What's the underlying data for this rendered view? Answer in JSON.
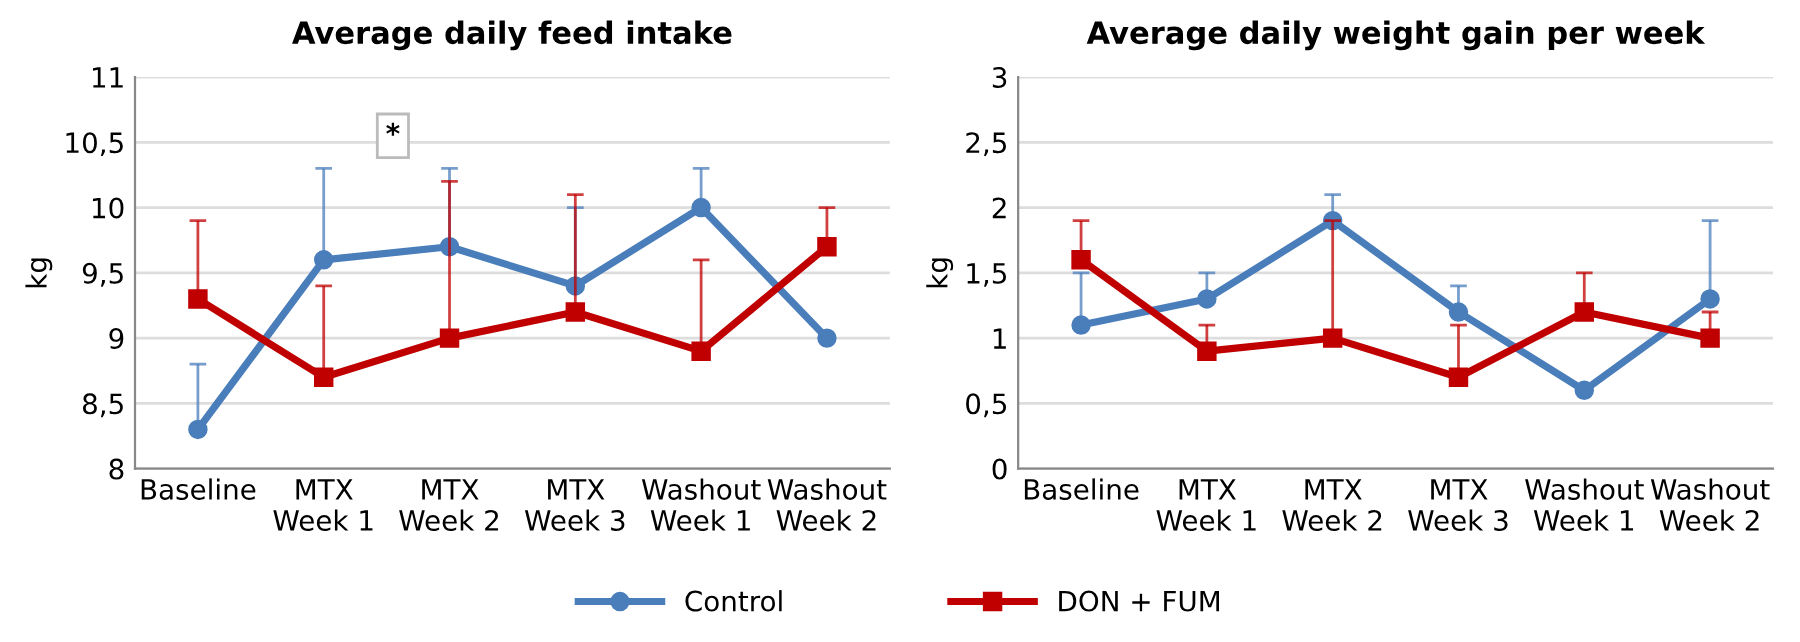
{
  "chart_data": [
    {
      "type": "line",
      "title": "Average daily feed intake",
      "ylabel": "kg",
      "categories": [
        "Baseline",
        "MTX\nWeek 1",
        "MTX\nWeek 2",
        "MTX\nWeek 3",
        "Washout\nWeek 1",
        "Washout\nWeek 2"
      ],
      "series": [
        {
          "name": "Control",
          "color": "#4a7ebb",
          "marker": "circle",
          "values": [
            8.3,
            9.6,
            9.7,
            9.4,
            10.0,
            9.0
          ],
          "errors": [
            [
              8.3,
              8.8
            ],
            [
              9.6,
              10.3
            ],
            [
              9.7,
              10.3
            ],
            [
              9.4,
              10.0
            ],
            [
              10.0,
              10.3
            ],
            null
          ]
        },
        {
          "name": "DON + FUM",
          "color": "#c00000",
          "marker": "square",
          "values": [
            9.3,
            8.7,
            9.0,
            9.2,
            8.9,
            9.7
          ],
          "errors": [
            [
              9.3,
              9.9
            ],
            [
              8.7,
              9.4
            ],
            [
              9.0,
              10.2
            ],
            [
              9.2,
              10.1
            ],
            [
              8.9,
              9.6
            ],
            [
              9.7,
              10.0
            ]
          ]
        }
      ],
      "ylim": [
        8,
        11
      ],
      "yticks": [
        8,
        {
          "value": 8.5,
          "label": "8,5"
        },
        9,
        {
          "value": 9.5,
          "label": "9,5"
        },
        10,
        {
          "value": 10.5,
          "label": "10,5"
        },
        11
      ],
      "annotations": [
        "*"
      ],
      "grid": "y",
      "legend": "bottom"
    },
    {
      "type": "line",
      "title": "Average daily weight gain per week",
      "ylabel": "kg",
      "categories": [
        "Baseline",
        "MTX\nWeek 1",
        "MTX\nWeek 2",
        "MTX\nWeek 3",
        "Washout\nWeek 1",
        "Washout\nWeek 2"
      ],
      "series": [
        {
          "name": "Control",
          "color": "#4a7ebb",
          "marker": "circle",
          "values": [
            1.1,
            1.3,
            1.9,
            1.2,
            0.6,
            1.3
          ],
          "errors": [
            [
              1.1,
              1.5
            ],
            [
              1.3,
              1.5
            ],
            [
              1.9,
              2.1
            ],
            [
              1.2,
              1.4
            ],
            null,
            [
              1.3,
              1.9
            ]
          ]
        },
        {
          "name": "DON + FUM",
          "color": "#c00000",
          "marker": "square",
          "values": [
            1.6,
            0.9,
            1.0,
            0.7,
            1.2,
            1.0
          ],
          "errors": [
            [
              1.6,
              1.9
            ],
            [
              0.9,
              1.1
            ],
            [
              1.0,
              1.9
            ],
            [
              0.7,
              1.1
            ],
            [
              1.2,
              1.5
            ],
            [
              1.0,
              1.2
            ]
          ]
        }
      ],
      "ylim": [
        0,
        3
      ],
      "yticks": [
        0,
        {
          "value": 0.5,
          "label": "0,5"
        },
        1,
        {
          "value": 1.5,
          "label": "1,5"
        },
        2,
        {
          "value": 2.5,
          "label": "2,5"
        },
        3
      ],
      "grid": "y"
    }
  ]
}
